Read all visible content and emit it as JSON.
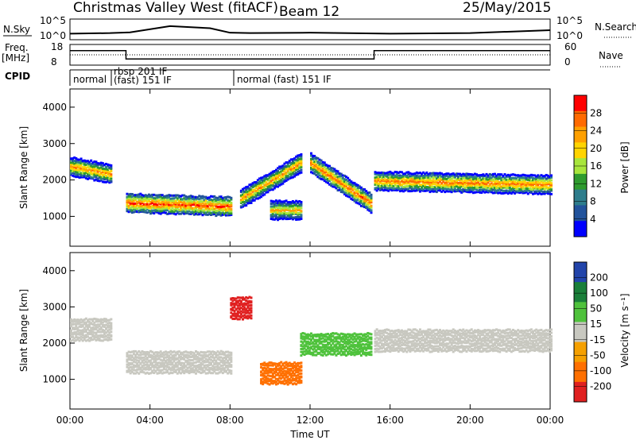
{
  "header": {
    "title": "Christmas Valley West (fitACF)",
    "beam": "Beam 12",
    "date": "25/May/2015"
  },
  "nsky_panel": {
    "left_label": "N.Sky",
    "right_label": "N.Search",
    "left_ticks": [
      "10^5",
      "10^0"
    ],
    "right_ticks": [
      "10^5",
      "10^0"
    ]
  },
  "freq_panel": {
    "left_label_1": "Freq.",
    "left_label_2": "[MHz]",
    "right_label": "Nave",
    "left_ticks": [
      "18",
      "8"
    ],
    "right_ticks": [
      "60",
      "0"
    ]
  },
  "cpid": {
    "label": "CPID",
    "modes": [
      "normal",
      "rbsp 201 IF",
      "(fast) 151 IF",
      "normal (fast) 151 IF"
    ]
  },
  "power_panel": {
    "ylabel": "Slant Range [km]",
    "yticks": [
      "4000",
      "3000",
      "2000",
      "1000"
    ],
    "colorbar_label": "Power [dB]",
    "colorbar_ticks": [
      "28",
      "24",
      "20",
      "16",
      "12",
      "8",
      "4"
    ],
    "colors": [
      "#ff0000",
      "#ff6a00",
      "#ffa000",
      "#ffd400",
      "#a8e63c",
      "#2e9b2e",
      "#2e7d8c",
      "#22539c",
      "#0000ff"
    ]
  },
  "velocity_panel": {
    "ylabel": "Slant Range [km]",
    "yticks": [
      "4000",
      "3000",
      "2000",
      "1000"
    ],
    "colorbar_label": "Velocity [m s⁻¹]",
    "colorbar_ticks": [
      "200",
      "100",
      "50",
      "15",
      "-15",
      "-50",
      "-100",
      "-200"
    ],
    "colors": [
      "#2244aa",
      "#1a7f3a",
      "#4fc23c",
      "#c8c8c0",
      "#f5a000",
      "#ff7000",
      "#e02020"
    ]
  },
  "x_axis": {
    "label": "Time UT",
    "ticks": [
      "00:00",
      "04:00",
      "08:00",
      "12:00",
      "16:00",
      "20:00",
      "00:00"
    ]
  },
  "chart_data": [
    {
      "type": "line",
      "title": "N.Sky / N.Search",
      "x_range_hours": [
        0,
        24
      ],
      "y_scale": "log",
      "ylim": [
        1,
        100000
      ],
      "series": [
        {
          "x": [
            0,
            2,
            3,
            5,
            7,
            8,
            9,
            12,
            16,
            20,
            24
          ],
          "values": [
            30,
            40,
            60,
            2000,
            600,
            50,
            40,
            50,
            30,
            40,
            200
          ]
        }
      ]
    },
    {
      "type": "line",
      "title": "Freq. / Nave",
      "x_range_hours": [
        0,
        24
      ],
      "ylim": [
        8,
        18
      ],
      "series": [
        {
          "x": [
            0,
            2,
            2.8,
            2.8,
            8,
            8,
            15.2,
            15.2,
            24
          ],
          "values": [
            15,
            15,
            15,
            11,
            11,
            11,
            11,
            15,
            15
          ]
        },
        {
          "x": [
            0,
            24
          ],
          "values": [
            13,
            13
          ]
        }
      ]
    },
    {
      "type": "heatmap",
      "title": "Power [dB]",
      "xlabel": "Time UT",
      "ylabel": "Slant Range [km]",
      "x_range_hours": [
        0,
        24
      ],
      "ylim": [
        180,
        4500
      ],
      "colorbar": {
        "label": "Power [dB]",
        "ticks": [
          4,
          8,
          12,
          16,
          20,
          24,
          28
        ]
      },
      "bands": [
        {
          "t": [
            0,
            2
          ],
          "center_km": [
            2400,
            2200
          ],
          "peak_db": 20
        },
        {
          "t": [
            2.8,
            8
          ],
          "center_km": [
            1400,
            1300
          ],
          "peak_db": 28
        },
        {
          "t": [
            8.5,
            11.5
          ],
          "center_km": [
            1500,
            2500
          ],
          "peak_db": 18
        },
        {
          "t": [
            10,
            11.5
          ],
          "center_km": [
            1200,
            1200
          ],
          "peak_db": 14
        },
        {
          "t": [
            12,
            15
          ],
          "center_km": [
            2500,
            1400
          ],
          "peak_db": 24
        },
        {
          "t": [
            15.2,
            24
          ],
          "center_km": [
            2000,
            1900
          ],
          "peak_db": 22
        }
      ]
    },
    {
      "type": "heatmap",
      "title": "Velocity [m s⁻¹]",
      "xlabel": "Time UT",
      "ylabel": "Slant Range [km]",
      "x_range_hours": [
        0,
        24
      ],
      "ylim": [
        180,
        4500
      ],
      "colorbar": {
        "label": "Velocity [m s⁻¹]",
        "ticks": [
          -200,
          -100,
          -50,
          -15,
          15,
          50,
          100,
          200
        ]
      },
      "regions": [
        {
          "t": [
            0,
            2
          ],
          "center_km": 2400,
          "velocity": 0
        },
        {
          "t": [
            2.8,
            8
          ],
          "center_km": 1500,
          "velocity": 0
        },
        {
          "t": [
            8,
            9
          ],
          "center_km": 3000,
          "velocity": -200
        },
        {
          "t": [
            9.5,
            11.5
          ],
          "center_km": 1200,
          "velocity": -60
        },
        {
          "t": [
            11.5,
            15
          ],
          "center_km": 2000,
          "velocity": 40
        },
        {
          "t": [
            15.2,
            24
          ],
          "center_km": 2100,
          "velocity": 0
        }
      ]
    }
  ]
}
